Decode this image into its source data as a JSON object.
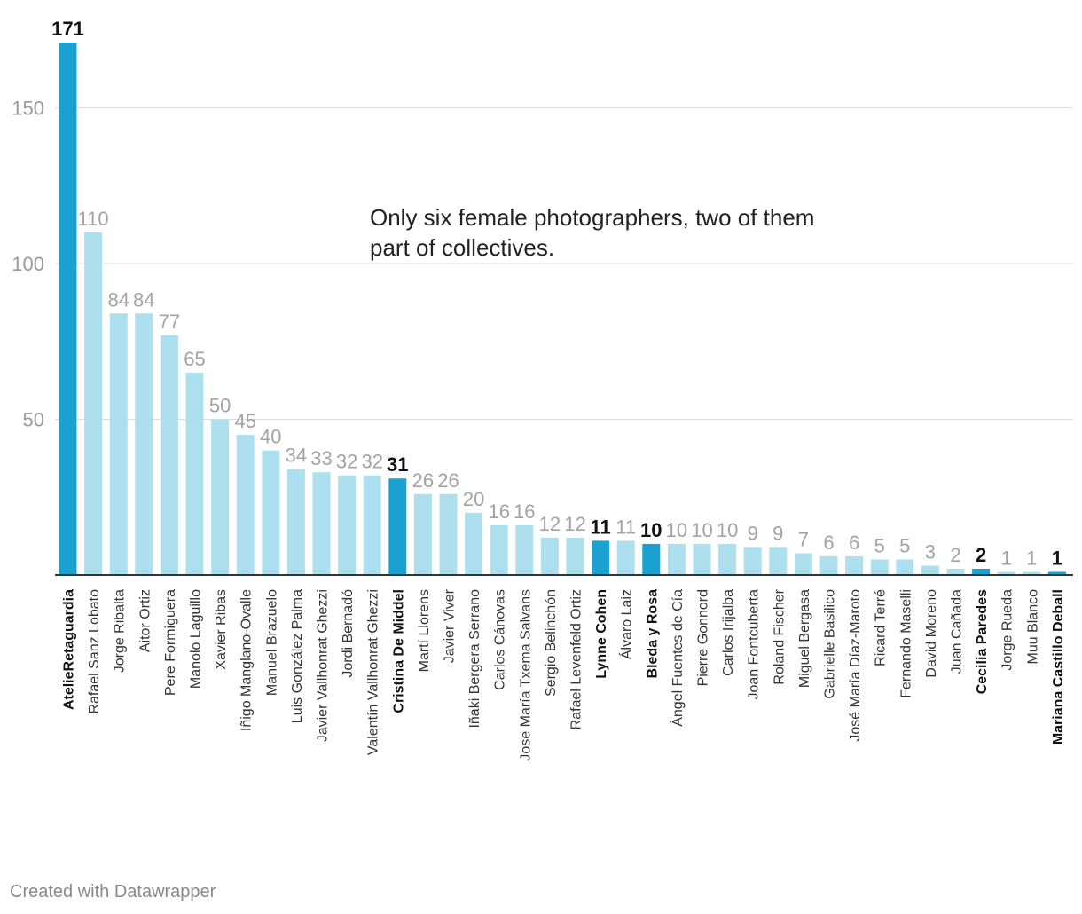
{
  "chart_data": {
    "type": "bar",
    "categories": [
      "AtelieRetaguardia",
      "Rafael Sanz Lobato",
      "Jorge Ribalta",
      "Aitor Ortiz",
      "Pere Formiguera",
      "Manolo Laguillo",
      "Xavier Ribas",
      "Iñigo Manglano-Ovalle",
      "Manuel Brazuelo",
      "Luis González Palma",
      "Javier Vallhonrat Ghezzi",
      "Jordi Bernadó",
      "Valentín Vallhonrat Ghezzi",
      "Cristina De Middel",
      "Martí Llorens",
      "Javier Viver",
      "Iñaki Bergera Serrano",
      "Carlos Cánovas",
      "Jose María Txema Salvans",
      "Sergio Belinchón",
      "Rafael Levenfeld Ortiz",
      "Lynne Cohen",
      "Álvaro Laiz",
      "Bleda y Rosa",
      "Ángel Fuentes de Cía",
      "Pierre Gonnord",
      "Carlos Irijalba",
      "Joan Fontcuberta",
      "Roland Fischer",
      "Miguel Bergasa",
      "Gabrielle Basilico",
      "José María Díaz-Maroto",
      "Ricard Terré",
      "Fernando Maselli",
      "David Moreno",
      "Juan Cañada",
      "Cecilia Paredes",
      "Jorge Rueda",
      "Muu Blanco",
      "Mariana Castillo Deball"
    ],
    "values": [
      171,
      110,
      84,
      84,
      77,
      65,
      50,
      45,
      40,
      34,
      33,
      32,
      32,
      31,
      26,
      26,
      20,
      16,
      16,
      12,
      12,
      11,
      11,
      10,
      10,
      10,
      10,
      9,
      9,
      7,
      6,
      6,
      5,
      5,
      3,
      2,
      2,
      1,
      1,
      1
    ],
    "highlighted": [
      "AtelieRetaguardia",
      "Cristina De Middel",
      "Lynne Cohen",
      "Bleda y Rosa",
      "Cecilia Paredes",
      "Mariana Castillo Deball"
    ],
    "yticks": [
      50,
      100,
      150
    ],
    "ylim": [
      0,
      171
    ],
    "grid": true,
    "annotation": "Only six female photographers, two of them part of collectives.",
    "colors": {
      "highlight": "#1ba1d1",
      "default": "#aedfef",
      "highlight_label": "#111111",
      "default_label": "#a3a3a3",
      "grid": "#dcdcdc",
      "axis": "#333333",
      "tick_label": "#9a9a9a"
    }
  },
  "footer": {
    "credit": "Created with Datawrapper"
  }
}
